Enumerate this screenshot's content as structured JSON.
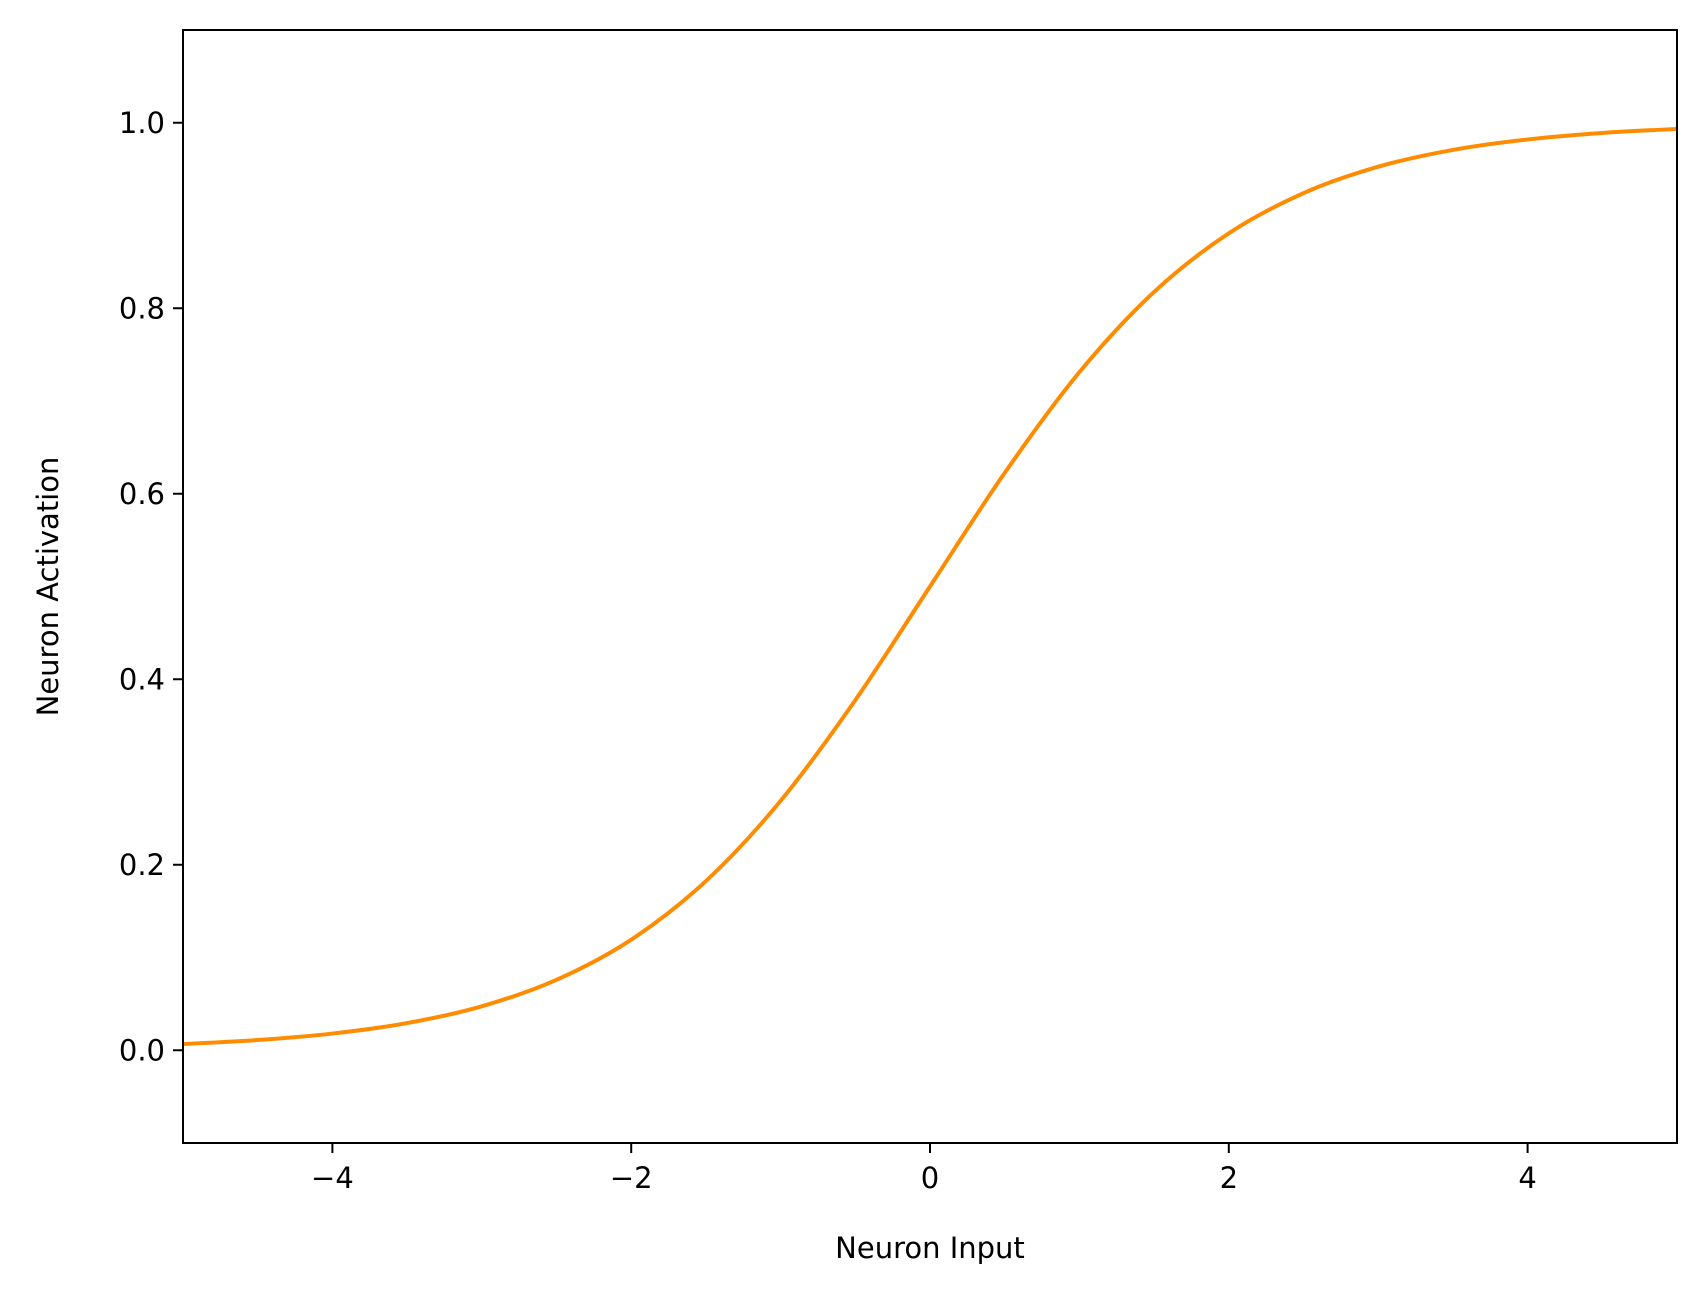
{
  "chart_data": {
    "type": "line",
    "title": "",
    "xlabel": "Neuron Input",
    "ylabel": "Neuron Activation",
    "xlim": [
      -5,
      5
    ],
    "ylim": [
      -0.1,
      1.1
    ],
    "xticks": [
      {
        "value": -4,
        "label": "−4"
      },
      {
        "value": -2,
        "label": "−2"
      },
      {
        "value": 0,
        "label": "0"
      },
      {
        "value": 2,
        "label": "2"
      },
      {
        "value": 4,
        "label": "4"
      }
    ],
    "yticks": [
      {
        "value": 0.0,
        "label": "0.0"
      },
      {
        "value": 0.2,
        "label": "0.2"
      },
      {
        "value": 0.4,
        "label": "0.4"
      },
      {
        "value": 0.6,
        "label": "0.6"
      },
      {
        "value": 0.8,
        "label": "0.8"
      },
      {
        "value": 1.0,
        "label": "1.0"
      }
    ],
    "grid": false,
    "legend": "none",
    "series": [
      {
        "color": "#ff8c00",
        "x": [
          -5,
          -4.5,
          -4,
          -3.5,
          -3,
          -2.5,
          -2,
          -1.5,
          -1,
          -0.5,
          0,
          0.5,
          1,
          1.5,
          2,
          2.5,
          3,
          3.5,
          4,
          4.5,
          5
        ],
        "y": [
          0.0067,
          0.011,
          0.018,
          0.0293,
          0.0474,
          0.0759,
          0.1192,
          0.1824,
          0.2689,
          0.3775,
          0.5,
          0.6225,
          0.7311,
          0.8176,
          0.8808,
          0.9241,
          0.9526,
          0.9707,
          0.982,
          0.989,
          0.9933
        ]
      }
    ]
  }
}
